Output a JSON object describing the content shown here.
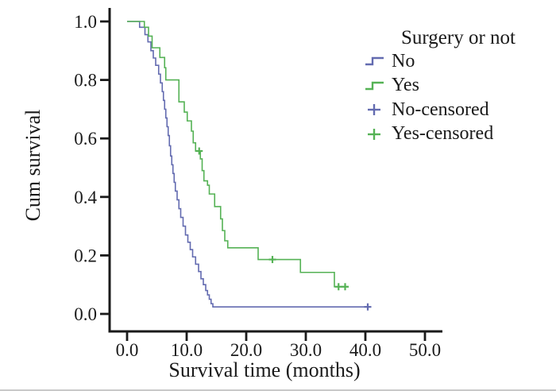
{
  "figure": {
    "background": "#ffffff",
    "bottom_border_color": "#c9c9c9",
    "axis_color": "#1a1a1a"
  },
  "chart_data": {
    "type": "line",
    "subtype": "kaplan_meier_step",
    "title": "",
    "xlabel": "Survival time (months)",
    "ylabel": "Cum survival",
    "xlim": [
      0,
      50
    ],
    "ylim": [
      0.0,
      1.0
    ],
    "grid": false,
    "x_ticks": [
      {
        "value": 0,
        "label": "0.0"
      },
      {
        "value": 10,
        "label": "10.0"
      },
      {
        "value": 20,
        "label": "20.0"
      },
      {
        "value": 30,
        "label": "30.0"
      },
      {
        "value": 40,
        "label": "40.0"
      },
      {
        "value": 50,
        "label": "50.0"
      }
    ],
    "y_ticks": [
      {
        "value": 0.0,
        "label": "0.0"
      },
      {
        "value": 0.2,
        "label": "0.2"
      },
      {
        "value": 0.4,
        "label": "0.4"
      },
      {
        "value": 0.6,
        "label": "0.6"
      },
      {
        "value": 0.8,
        "label": "0.8"
      },
      {
        "value": 1.0,
        "label": "1.0"
      }
    ],
    "legend": {
      "title": "Surgery or not",
      "position": "upper-right",
      "items": [
        {
          "label": "No",
          "marker": "step",
          "color": "#636bb0"
        },
        {
          "label": "Yes",
          "marker": "step",
          "color": "#55b255"
        },
        {
          "label": "No-censored",
          "marker": "plus",
          "color": "#636bb0"
        },
        {
          "label": "Yes-censored",
          "marker": "plus",
          "color": "#55b255"
        }
      ]
    },
    "series": [
      {
        "name": "No",
        "color": "#636bb0",
        "steps": [
          [
            0,
            1.0
          ],
          [
            2.1,
            0.98
          ],
          [
            3.0,
            0.955
          ],
          [
            3.5,
            0.93
          ],
          [
            4.0,
            0.9
          ],
          [
            4.4,
            0.875
          ],
          [
            4.8,
            0.85
          ],
          [
            5.3,
            0.82
          ],
          [
            5.6,
            0.79
          ],
          [
            5.9,
            0.76
          ],
          [
            6.1,
            0.73
          ],
          [
            6.3,
            0.7
          ],
          [
            6.5,
            0.67
          ],
          [
            6.7,
            0.64
          ],
          [
            6.9,
            0.61
          ],
          [
            7.1,
            0.575
          ],
          [
            7.3,
            0.54
          ],
          [
            7.5,
            0.51
          ],
          [
            7.7,
            0.48
          ],
          [
            7.9,
            0.45
          ],
          [
            8.1,
            0.42
          ],
          [
            8.4,
            0.39
          ],
          [
            8.7,
            0.36
          ],
          [
            9.0,
            0.33
          ],
          [
            9.4,
            0.3
          ],
          [
            9.8,
            0.27
          ],
          [
            10.2,
            0.245
          ],
          [
            10.6,
            0.22
          ],
          [
            11.0,
            0.195
          ],
          [
            11.5,
            0.17
          ],
          [
            12.0,
            0.145
          ],
          [
            12.4,
            0.12
          ],
          [
            12.8,
            0.1
          ],
          [
            13.2,
            0.08
          ],
          [
            13.5,
            0.065
          ],
          [
            13.8,
            0.05
          ],
          [
            14.1,
            0.035
          ],
          [
            14.4,
            0.024
          ]
        ],
        "end_time": 40.7,
        "censored": [
          [
            40.4,
            0.024
          ]
        ]
      },
      {
        "name": "Yes",
        "color": "#55b255",
        "steps": [
          [
            0,
            1.0
          ],
          [
            2.9,
            0.98
          ],
          [
            3.6,
            0.95
          ],
          [
            4.2,
            0.91
          ],
          [
            5.5,
            0.877
          ],
          [
            6.3,
            0.842
          ],
          [
            6.5,
            0.8
          ],
          [
            8.7,
            0.725
          ],
          [
            9.6,
            0.69
          ],
          [
            10.1,
            0.66
          ],
          [
            10.8,
            0.625
          ],
          [
            11.1,
            0.585
          ],
          [
            11.5,
            0.557
          ],
          [
            12.3,
            0.53
          ],
          [
            12.6,
            0.49
          ],
          [
            12.9,
            0.455
          ],
          [
            13.5,
            0.44
          ],
          [
            13.8,
            0.41
          ],
          [
            14.7,
            0.367
          ],
          [
            15.7,
            0.325
          ],
          [
            16.0,
            0.285
          ],
          [
            16.4,
            0.25
          ],
          [
            16.9,
            0.226
          ],
          [
            22.0,
            0.186
          ],
          [
            29.1,
            0.142
          ],
          [
            34.8,
            0.093
          ]
        ],
        "end_time": 37.2,
        "censored": [
          [
            12.1,
            0.557
          ],
          [
            24.4,
            0.186
          ],
          [
            35.5,
            0.093
          ],
          [
            36.6,
            0.093
          ]
        ]
      }
    ]
  }
}
